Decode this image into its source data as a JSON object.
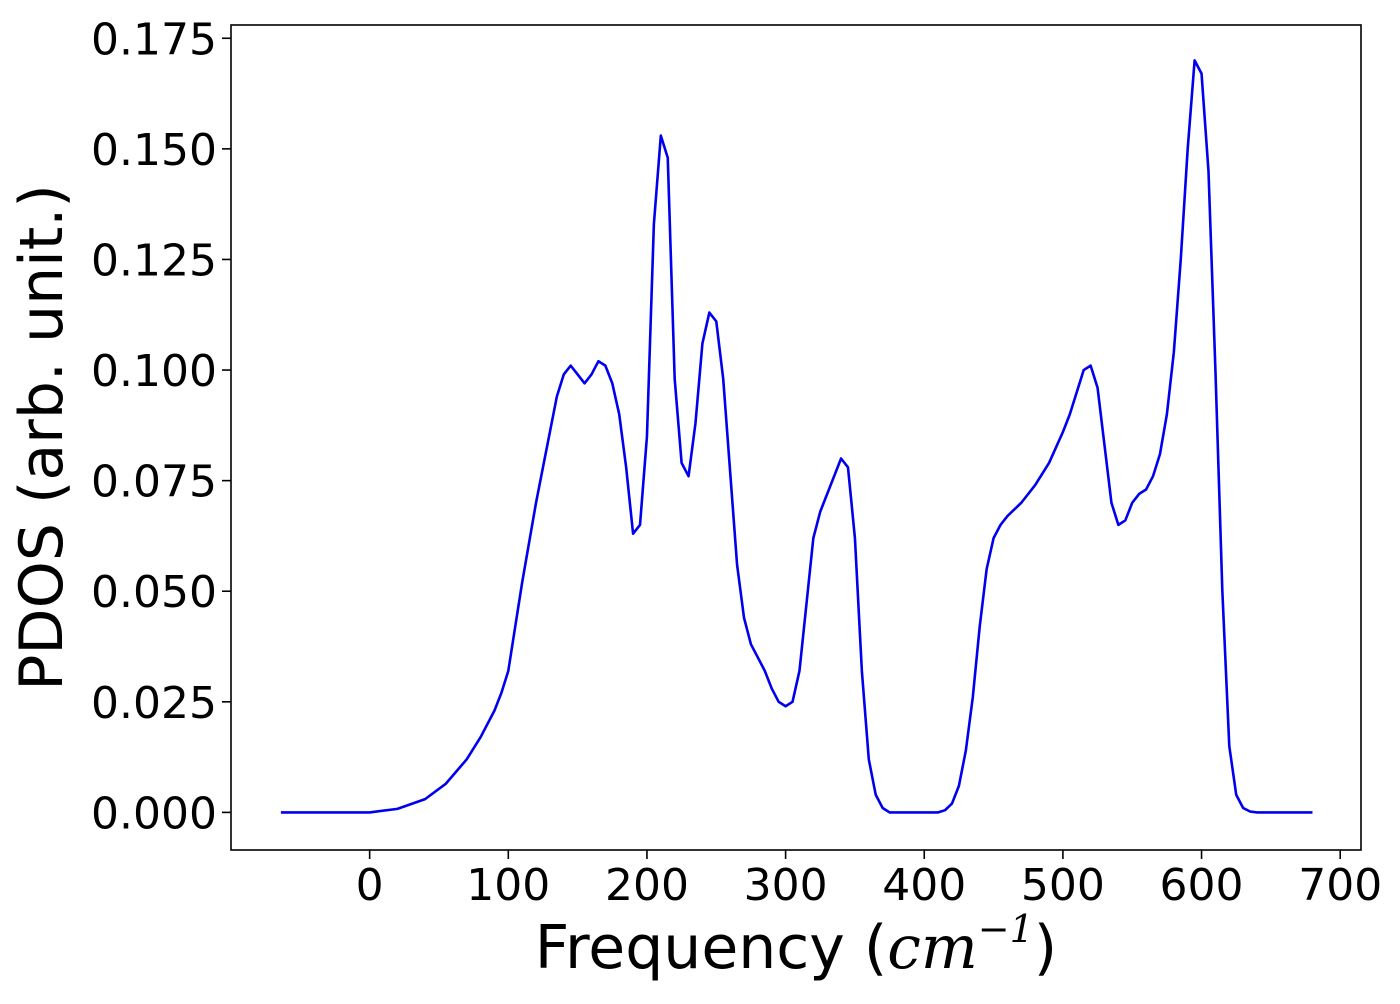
{
  "chart_data": {
    "type": "line",
    "title": "",
    "xlabel_prefix": "Frequency (",
    "xlabel_unit_base": "cm",
    "xlabel_unit_exp": "−1",
    "xlabel_suffix": ")",
    "ylabel": "PDOS (arb. unit.)",
    "xlim": [
      -100,
      715
    ],
    "ylim": [
      -0.0085,
      0.178
    ],
    "xticks": [
      0,
      100,
      200,
      300,
      400,
      500,
      600,
      700
    ],
    "xtick_labels": [
      "0",
      "100",
      "200",
      "300",
      "400",
      "500",
      "600",
      "700"
    ],
    "yticks": [
      0.0,
      0.025,
      0.05,
      0.075,
      0.1,
      0.125,
      0.15,
      0.175
    ],
    "ytick_labels": [
      "0.000",
      "0.025",
      "0.050",
      "0.075",
      "0.100",
      "0.125",
      "0.150",
      "0.175"
    ],
    "grid": false,
    "legend": false,
    "series": [
      {
        "color": "#0000ee",
        "x": [
          -64,
          -20,
          0,
          20,
          40,
          55,
          70,
          80,
          90,
          95,
          100,
          105,
          110,
          115,
          120,
          125,
          130,
          135,
          140,
          145,
          150,
          155,
          160,
          165,
          170,
          175,
          180,
          185,
          190,
          195,
          200,
          205,
          210,
          215,
          220,
          225,
          230,
          235,
          240,
          245,
          250,
          255,
          260,
          265,
          270,
          275,
          280,
          285,
          290,
          295,
          300,
          305,
          310,
          315,
          320,
          325,
          330,
          335,
          340,
          345,
          350,
          355,
          360,
          365,
          370,
          375,
          380,
          390,
          400,
          410,
          415,
          420,
          425,
          430,
          435,
          440,
          445,
          450,
          455,
          460,
          470,
          480,
          490,
          500,
          505,
          510,
          515,
          520,
          525,
          530,
          535,
          540,
          545,
          550,
          555,
          560,
          565,
          570,
          575,
          580,
          585,
          590,
          595,
          600,
          605,
          610,
          615,
          620,
          625,
          630,
          635,
          640,
          650,
          680
        ],
        "y": [
          0.0,
          0.0,
          0.0,
          0.0008,
          0.003,
          0.0065,
          0.012,
          0.017,
          0.023,
          0.027,
          0.032,
          0.042,
          0.052,
          0.061,
          0.07,
          0.078,
          0.086,
          0.094,
          0.099,
          0.101,
          0.099,
          0.097,
          0.099,
          0.102,
          0.101,
          0.097,
          0.09,
          0.078,
          0.063,
          0.065,
          0.085,
          0.133,
          0.153,
          0.148,
          0.098,
          0.079,
          0.076,
          0.088,
          0.106,
          0.113,
          0.111,
          0.098,
          0.077,
          0.056,
          0.044,
          0.038,
          0.035,
          0.032,
          0.028,
          0.025,
          0.024,
          0.025,
          0.032,
          0.047,
          0.062,
          0.068,
          0.072,
          0.076,
          0.08,
          0.078,
          0.062,
          0.032,
          0.012,
          0.004,
          0.001,
          0.0,
          0.0,
          0.0,
          0.0,
          0.0,
          0.0005,
          0.002,
          0.006,
          0.014,
          0.026,
          0.042,
          0.055,
          0.062,
          0.065,
          0.067,
          0.07,
          0.074,
          0.079,
          0.086,
          0.09,
          0.095,
          0.1,
          0.101,
          0.096,
          0.083,
          0.07,
          0.065,
          0.066,
          0.07,
          0.072,
          0.073,
          0.076,
          0.081,
          0.09,
          0.104,
          0.125,
          0.15,
          0.17,
          0.167,
          0.145,
          0.1,
          0.05,
          0.015,
          0.004,
          0.001,
          0.0002,
          0.0,
          0.0,
          0.0
        ]
      }
    ]
  }
}
